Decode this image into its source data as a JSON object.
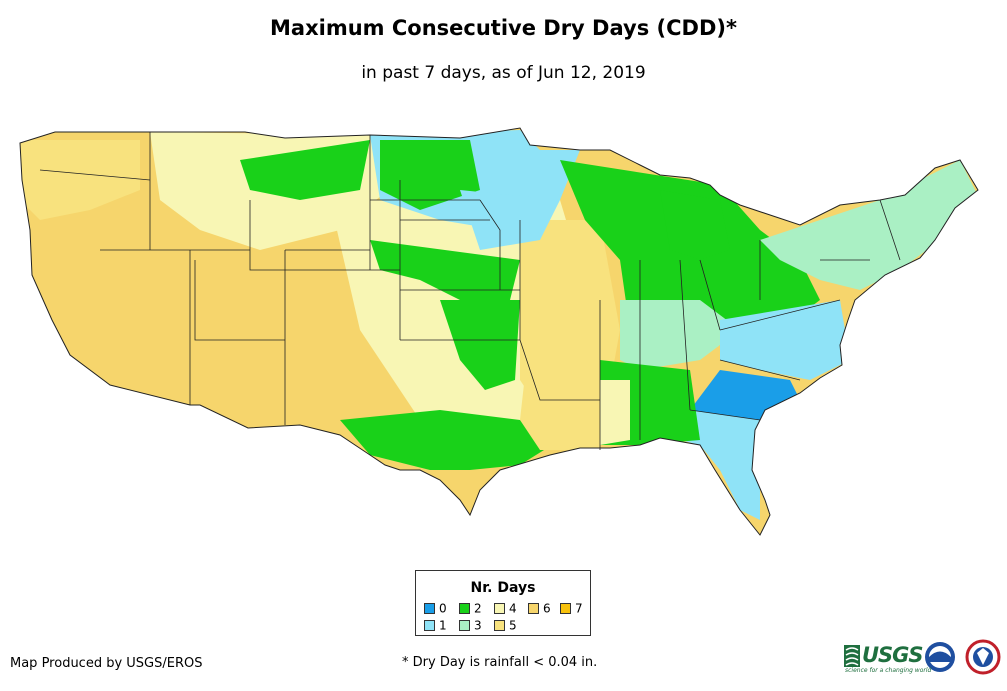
{
  "title": "Maximum Consecutive Dry Days (CDD)*",
  "subtitle": "in past 7 days, as of Jun 12, 2019",
  "legend": {
    "title": "Nr. Days",
    "items": [
      {
        "label": "0",
        "color": "#1a9ee8"
      },
      {
        "label": "1",
        "color": "#8fe3f7"
      },
      {
        "label": "2",
        "color": "#19d119"
      },
      {
        "label": "3",
        "color": "#aaf0c4"
      },
      {
        "label": "4",
        "color": "#f8f6b4"
      },
      {
        "label": "5",
        "color": "#f8e27e"
      },
      {
        "label": "6",
        "color": "#f6d56c"
      },
      {
        "label": "7",
        "color": "#f8c20c"
      }
    ]
  },
  "footer": {
    "credit": "Map Produced by USGS/EROS",
    "note": "* Dry Day is rainfall < 0.04 in."
  },
  "logos": {
    "usgs": "USGS",
    "usgs_tagline": "science for a changing world",
    "noaa": "noaa",
    "nws": "nws"
  }
}
